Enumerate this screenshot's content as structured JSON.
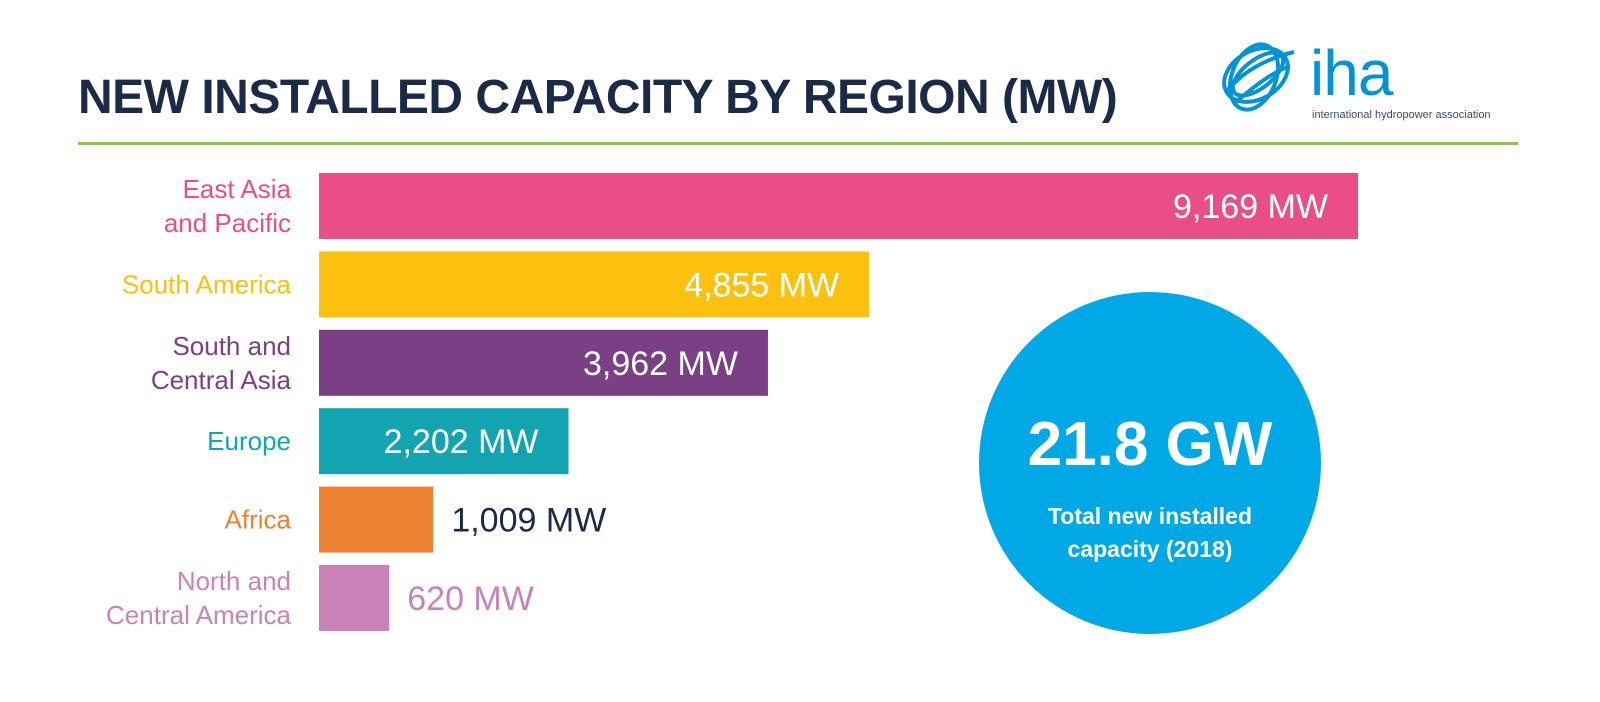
{
  "title": "NEW INSTALLED CAPACITY BY REGION (MW)",
  "logo": {
    "wordmark": "iha",
    "tagline": "international hydropower association",
    "color": "#0093d6"
  },
  "accent_rule_color": "#8cc540",
  "chart_data": {
    "type": "bar",
    "orientation": "horizontal",
    "title": "NEW INSTALLED CAPACITY BY REGION (MW)",
    "categories": [
      [
        "East Asia",
        "and Pacific"
      ],
      [
        "South America"
      ],
      [
        "South and",
        "Central Asia"
      ],
      [
        "Europe"
      ],
      [
        "Africa"
      ],
      [
        "North and",
        "Central America"
      ]
    ],
    "values": [
      9169,
      4855,
      3962,
      2202,
      1009,
      620
    ],
    "value_labels": [
      "9,169 MW",
      "4,855 MW",
      "3,962 MW",
      "2,202 MW",
      "1,009 MW",
      "620 MW"
    ],
    "colors": [
      "#e94e86",
      "#fcc10f",
      "#7b3f86",
      "#12a5b1",
      "#ec8132",
      "#c983b9"
    ],
    "label_colors": [
      "#e94e86",
      "#fcc10f",
      "#7b3f86",
      "#12a5b1",
      "#ec8132",
      "#c983b9"
    ],
    "value_label_colors": [
      "#ffffff",
      "#ffffff",
      "#ffffff",
      "#ffffff",
      "#1b2a47",
      "#c983b9"
    ],
    "value_label_inside": [
      true,
      true,
      true,
      true,
      false,
      false
    ],
    "xlim": [
      0,
      9169
    ],
    "grid": false,
    "legend": "none"
  },
  "total": {
    "value": "21.8 GW",
    "caption_line1": "Total new installed",
    "caption_line2": "capacity (2018)",
    "color": "#00a8e6"
  }
}
